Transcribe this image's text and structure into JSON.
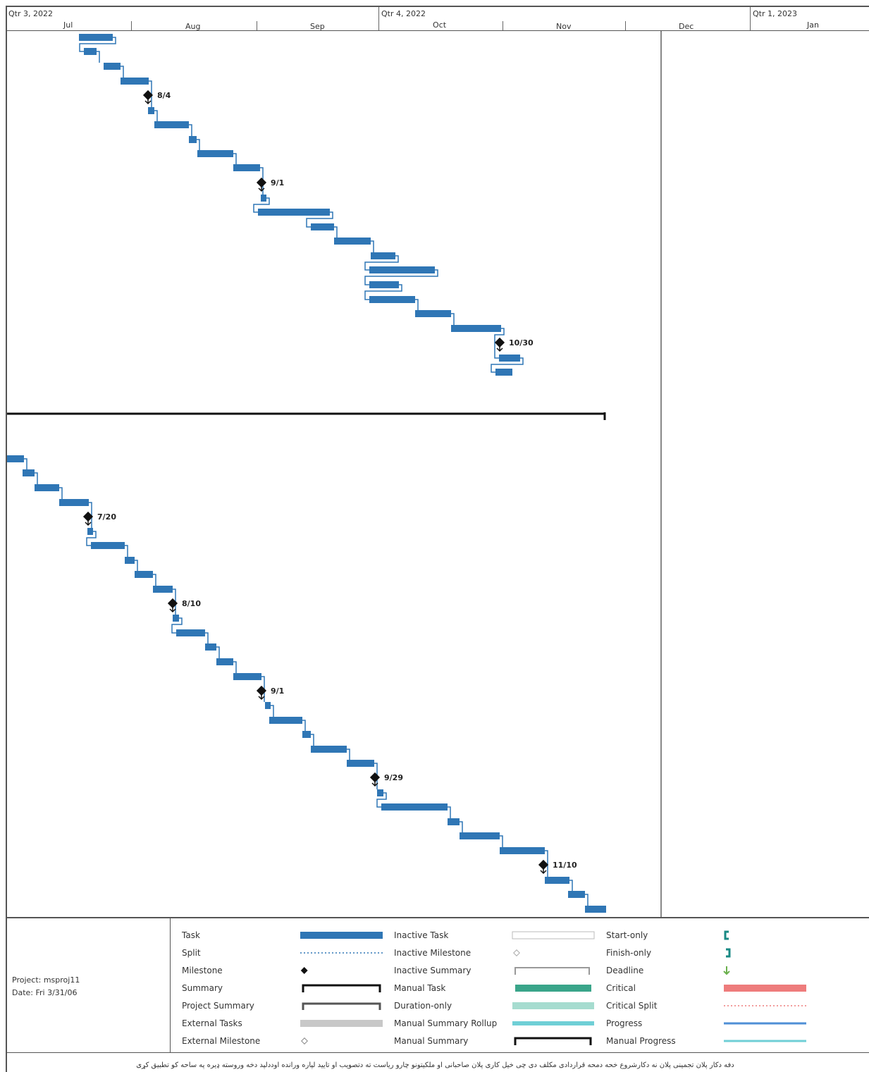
{
  "timescale": {
    "quarters": [
      {
        "label": "Qtr 3, 2022"
      },
      {
        "label": "Qtr 4, 2022"
      },
      {
        "label": "Qtr 1, 2023"
      }
    ],
    "months": [
      "Jul",
      "Aug",
      "Sep",
      "Oct",
      "Nov",
      "Dec",
      "Jan"
    ]
  },
  "milestones": [
    "8/4",
    "9/1",
    "10/30",
    "7/20",
    "8/10",
    "9/1",
    "9/29",
    "11/10"
  ],
  "legend": {
    "project": "Project: msproj11",
    "date": "Date: Fri 3/31/06",
    "col1": [
      "Task",
      "Split",
      "Milestone",
      "Summary",
      "Project Summary",
      "External Tasks",
      "External Milestone"
    ],
    "col2": [
      "Inactive Task",
      "Inactive Milestone",
      "Inactive Summary",
      "Manual Task",
      "Duration-only",
      "Manual Summary Rollup",
      "Manual Summary"
    ],
    "col3": [
      "Start-only",
      "Finish-only",
      "Deadline",
      "Critical",
      "Critical Split",
      "Progress",
      "Manual Progress"
    ]
  },
  "colors": {
    "task": "#2f76b5",
    "milestone": "#111111",
    "manual_task": "#3aa58a",
    "duration_only": "#a6dccf",
    "rollup": "#6fcfd6",
    "critical": "#ee7c7c",
    "progress": "#4f8fd6",
    "external": "#c8c8c8",
    "deadline": "#6ab04c",
    "start_finish": "#1a8a84"
  },
  "footer_note": "دفه دکار پلان تجمینی پلان نه دکارشروع خحه دمحه قراردادی مکلف دی چی خیل کاری پلان صاحبانی او ملکیتونو چارو ریاست ته دتصویب او تایید لپاره ورانده اوددلپد دخه وروسته ډیره په ساحه کو تطبیق کړی"
}
